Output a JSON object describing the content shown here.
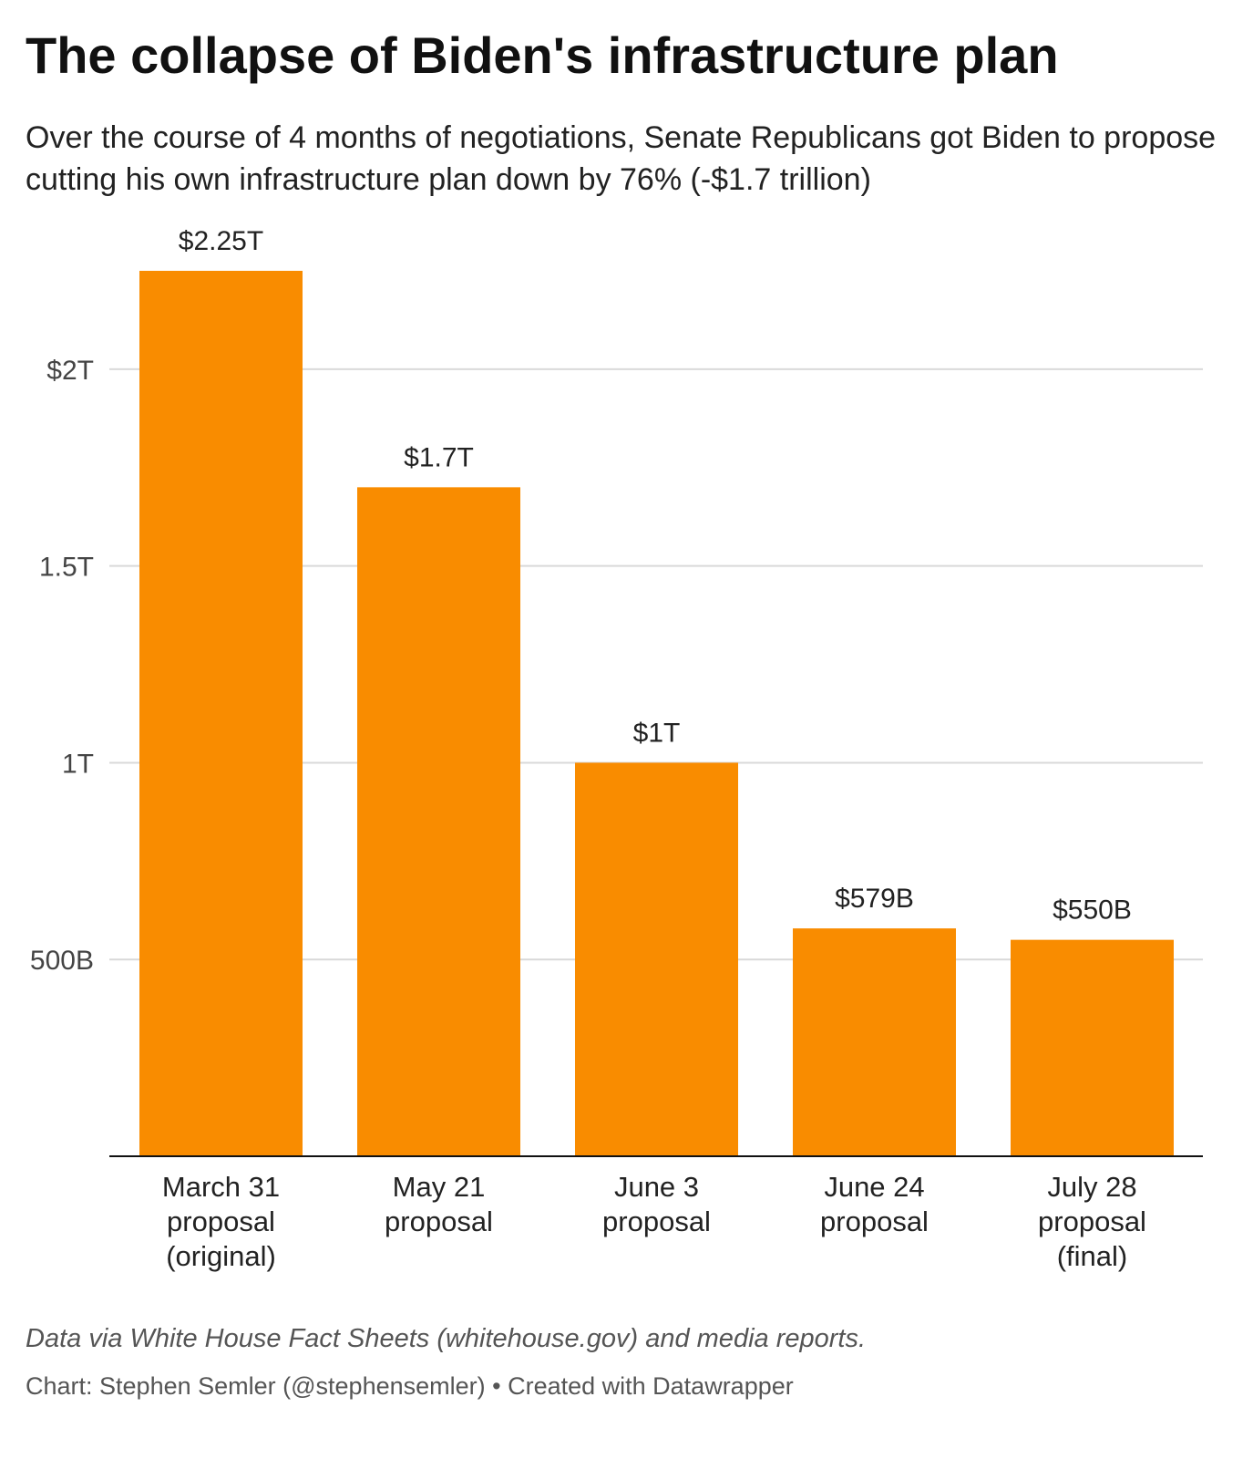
{
  "chart_data": {
    "type": "bar",
    "title": "The collapse of Biden's infrastructure plan",
    "subtitle": "Over the course of 4 months of negotiations, Senate Republicans got Biden to propose cutting his own infrastructure plan down by 76% (-$1.7 trillion)",
    "categories": [
      [
        "March 31",
        "proposal",
        "(original)"
      ],
      [
        "May 21",
        "proposal"
      ],
      [
        "June 3",
        "proposal"
      ],
      [
        "June 24",
        "proposal"
      ],
      [
        "July 28",
        "proposal",
        "(final)"
      ]
    ],
    "values": [
      2250000000000,
      1700000000000,
      1000000000000,
      579000000000,
      550000000000
    ],
    "value_labels": [
      "$2.25T",
      "$1.7T",
      "$1T",
      "$579B",
      "$550B"
    ],
    "y_ticks": [
      {
        "value": 500000000000,
        "label": "500B"
      },
      {
        "value": 1000000000000,
        "label": "1T"
      },
      {
        "value": 1500000000000,
        "label": "1.5T"
      },
      {
        "value": 2000000000000,
        "label": "$2T"
      }
    ],
    "ylim": [
      0,
      2250000000000
    ],
    "xlabel": "",
    "ylabel": "",
    "grid": true,
    "bar_color": "#f98c00",
    "grid_color": "#d9d9d9",
    "axis_color": "#111111"
  },
  "footer": {
    "source": "Data via White House Fact Sheets (whitehouse.gov) and media reports.",
    "credit": "Chart: Stephen Semler (@stephensemler) • Created with Datawrapper"
  }
}
